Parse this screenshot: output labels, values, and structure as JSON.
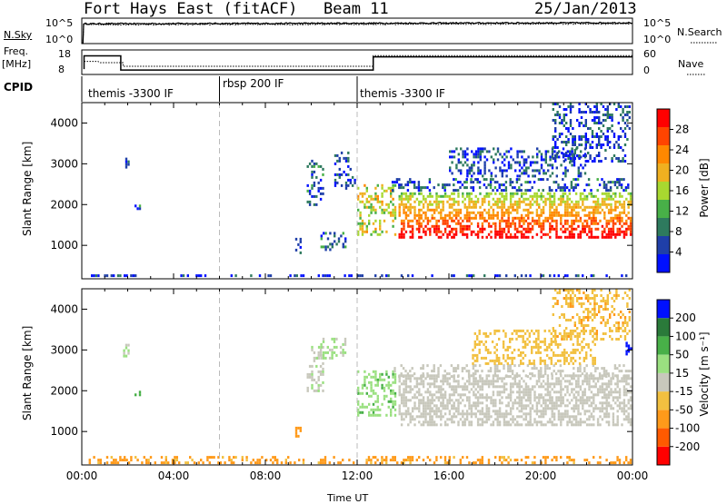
{
  "header": {
    "title": "Fort Hays East (fitACF)",
    "beam": "Beam 11",
    "date": "25/Jan/2013"
  },
  "noise_panel": {
    "left_label": "N.Sky",
    "left_ticks": [
      "10^5",
      "10^0"
    ],
    "right_ticks": [
      "10^5",
      "10^0"
    ],
    "right_label": "N.Search"
  },
  "freq_panel": {
    "left_label_top": "Freq.",
    "left_label_unit": "[MHz]",
    "left_ticks": [
      "18",
      "8"
    ],
    "right_ticks": [
      "60",
      "0"
    ],
    "right_label": "Nave"
  },
  "cpid_panel": {
    "label": "CPID",
    "segments": [
      {
        "name": "themis -3300 IF",
        "start_hour": 0,
        "end_hour": 6
      },
      {
        "name": "rbsp 200 IF",
        "start_hour": 6,
        "end_hour": 12
      },
      {
        "name": "themis -3300 IF",
        "start_hour": 12,
        "end_hour": 24
      }
    ]
  },
  "colors": {
    "power": [
      "#0010ff",
      "#1f3fa8",
      "#2e7a5e",
      "#48b048",
      "#a8d830",
      "#f0b020",
      "#ff8800",
      "#ff4400",
      "#ff0000"
    ],
    "velocity": [
      "#ff0000",
      "#ff5a00",
      "#ff9a1a",
      "#f2c040",
      "#c8c8bc",
      "#9ae080",
      "#48b048",
      "#2a7a3a",
      "#0010ff"
    ]
  },
  "chart_data": [
    {
      "type": "line",
      "name": "noise",
      "x_unit": "hour UT",
      "xlim": [
        0,
        24
      ],
      "series": [
        {
          "name": "N.Sky",
          "style": "solid",
          "points": [
            [
              0.05,
              0
            ],
            [
              0.08,
              3.9
            ],
            [
              6,
              4.0
            ],
            [
              12,
              4.0
            ],
            [
              18,
              4.0
            ],
            [
              24,
              4.1
            ]
          ]
        },
        {
          "name": "N.Search",
          "style": "dotted",
          "points": [
            [
              0.05,
              0
            ],
            [
              0.08,
              3.7
            ],
            [
              6,
              3.8
            ],
            [
              12,
              3.8
            ],
            [
              18,
              3.8
            ],
            [
              24,
              3.9
            ]
          ]
        }
      ]
    },
    {
      "type": "line",
      "name": "frequency",
      "x_unit": "hour UT",
      "xlim": [
        0,
        24
      ],
      "ylim_left": [
        8,
        18
      ],
      "ylim_right": [
        0,
        60
      ],
      "series": [
        {
          "name": "Freq.",
          "style": "solid",
          "points": [
            [
              0.1,
              10.2
            ],
            [
              0.1,
              15.6
            ],
            [
              1.7,
              15.6
            ],
            [
              1.7,
              9.8
            ],
            [
              12.7,
              9.8
            ],
            [
              12.7,
              15.2
            ],
            [
              24,
              15.2
            ]
          ]
        },
        {
          "name": "Nave",
          "style": "dotted",
          "points": [
            [
              0.1,
              32
            ],
            [
              0.7,
              32
            ],
            [
              0.8,
              29
            ],
            [
              1.8,
              29
            ],
            [
              1.8,
              20
            ],
            [
              12.7,
              20
            ],
            [
              12.7,
              46
            ],
            [
              24,
              46
            ]
          ]
        }
      ]
    },
    {
      "type": "heatmap",
      "name": "power",
      "title": "",
      "xlabel": "",
      "ylabel": "Slant Range [km]",
      "x_ticks": [
        "00:00",
        "04:00",
        "08:00",
        "12:00",
        "16:00",
        "20:00",
        "00:00"
      ],
      "y_ticks": [
        1000,
        2000,
        3000,
        4000
      ],
      "xlim": [
        0,
        24
      ],
      "ylim": [
        180,
        4500
      ],
      "colorbar": {
        "label": "Power [dB]",
        "ticks": [
          4,
          8,
          12,
          16,
          20,
          24,
          28
        ],
        "range": [
          0,
          30
        ]
      },
      "regions": [
        {
          "x": [
            0.3,
            24
          ],
          "y": [
            180,
            290
          ],
          "v": 3
        },
        {
          "x": [
            1.8,
            2.1
          ],
          "y": [
            2800,
            3150
          ],
          "v": 4
        },
        {
          "x": [
            2.2,
            2.6
          ],
          "y": [
            1800,
            2000
          ],
          "v": 6
        },
        {
          "x": [
            9.3,
            9.6
          ],
          "y": [
            750,
            1250
          ],
          "v": 8
        },
        {
          "x": [
            9.8,
            10.6
          ],
          "y": [
            1900,
            3100
          ],
          "v": 6
        },
        {
          "x": [
            10.4,
            11.6
          ],
          "y": [
            820,
            1330
          ],
          "v": 8
        },
        {
          "x": [
            11.0,
            12.0
          ],
          "y": [
            2300,
            3300
          ],
          "v": 5
        },
        {
          "x": [
            12.0,
            13.8
          ],
          "y": [
            1200,
            2500
          ],
          "v": 16
        },
        {
          "x": [
            13.8,
            24.0
          ],
          "y": [
            1100,
            2300
          ],
          "v": 24
        },
        {
          "x": [
            13.5,
            24.0
          ],
          "y": [
            2300,
            2650
          ],
          "v": 6
        },
        {
          "x": [
            16.0,
            22.0
          ],
          "y": [
            2600,
            3400
          ],
          "v": 5
        },
        {
          "x": [
            20.5,
            24.0
          ],
          "y": [
            3000,
            4500
          ],
          "v": 5
        }
      ]
    },
    {
      "type": "heatmap",
      "name": "velocity",
      "title": "",
      "xlabel": "Time UT",
      "ylabel": "Slant Range [km]",
      "x_ticks": [
        "00:00",
        "04:00",
        "08:00",
        "12:00",
        "16:00",
        "20:00",
        "00:00"
      ],
      "y_ticks": [
        1000,
        2000,
        3000,
        4000
      ],
      "xlim": [
        0,
        24
      ],
      "ylim": [
        180,
        4500
      ],
      "colorbar": {
        "label": "Velocity [m s⁻¹]",
        "ticks": [
          -200,
          -100,
          -50,
          -15,
          15,
          50,
          100,
          200
        ],
        "range": [
          -250,
          250
        ]
      },
      "regions": [
        {
          "x": [
            0.3,
            24
          ],
          "y": [
            180,
            400
          ],
          "v": -60
        },
        {
          "x": [
            1.8,
            2.1
          ],
          "y": [
            2800,
            3150
          ],
          "v": 10
        },
        {
          "x": [
            2.2,
            2.6
          ],
          "y": [
            1800,
            2000
          ],
          "v": 60
        },
        {
          "x": [
            9.3,
            9.6
          ],
          "y": [
            750,
            1250
          ],
          "v": -70
        },
        {
          "x": [
            9.8,
            10.6
          ],
          "y": [
            1900,
            3100
          ],
          "v": 5
        },
        {
          "x": [
            10.2,
            11.6
          ],
          "y": [
            2700,
            3300
          ],
          "v": 20
        },
        {
          "x": [
            12.0,
            13.8
          ],
          "y": [
            1300,
            2500
          ],
          "v": 40
        },
        {
          "x": [
            13.8,
            24.0
          ],
          "y": [
            1100,
            2400
          ],
          "v": 0
        },
        {
          "x": [
            13.5,
            24.0
          ],
          "y": [
            2300,
            2650
          ],
          "v": 0
        },
        {
          "x": [
            17.0,
            22.5
          ],
          "y": [
            2600,
            3500
          ],
          "v": -30
        },
        {
          "x": [
            20.5,
            24.0
          ],
          "y": [
            3200,
            4500
          ],
          "v": -40
        },
        {
          "x": [
            23.7,
            24.0
          ],
          "y": [
            2800,
            3200
          ],
          "v": 220
        }
      ]
    }
  ]
}
